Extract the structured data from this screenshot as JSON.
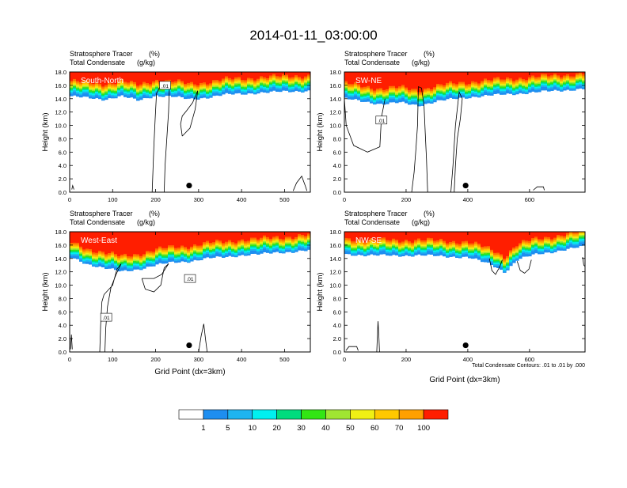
{
  "page_title": "2014-01-11_03:00:00",
  "colors": {
    "scale": [
      "#ffffff",
      "#1e8ef0",
      "#1eb4f0",
      "#00f0f0",
      "#00dc7e",
      "#32e614",
      "#a0e632",
      "#f0f014",
      "#ffc800",
      "#ffa000",
      "#ff6e00",
      "#ff1e00"
    ],
    "contour": "#000000",
    "label_box_bg": "#ffffff"
  },
  "chart_data": [
    {
      "type": "heatmap",
      "panel_label": "South-North",
      "title_left_line1": "Stratosphere Tracer",
      "title_right_line1": "(%)",
      "title_left_line2": "Total Condensate",
      "title_right_line2": "(g/kg)",
      "xlabel": "",
      "ylabel": "Height (km)",
      "xlim": [
        0,
        560
      ],
      "ylim": [
        0,
        18
      ],
      "x_ticks": [
        0,
        100,
        200,
        300,
        400,
        500
      ],
      "x_tick_labels": [
        "0",
        "100",
        "200",
        "300",
        "400",
        "500"
      ],
      "y_ticks": [
        0,
        2,
        4,
        6,
        8,
        10,
        12,
        14,
        16,
        18
      ],
      "y_tick_labels": [
        "0.0",
        "2.0",
        "4.0",
        "6.0",
        "8.0",
        "10.0",
        "12.0",
        "14.0",
        "16.0",
        "18.0"
      ],
      "marker": {
        "x": 278,
        "y": 1.0
      },
      "contour_labels": [
        {
          "text": ".01",
          "x": 222,
          "y": 16.0
        }
      ],
      "tracer_base_km": [
        {
          "x": 0,
          "y": 14.4
        },
        {
          "x": 40,
          "y": 14.1
        },
        {
          "x": 80,
          "y": 13.9
        },
        {
          "x": 120,
          "y": 14.4
        },
        {
          "x": 160,
          "y": 13.7
        },
        {
          "x": 200,
          "y": 14.5
        },
        {
          "x": 240,
          "y": 14.3
        },
        {
          "x": 280,
          "y": 13.9
        },
        {
          "x": 320,
          "y": 14.2
        },
        {
          "x": 360,
          "y": 14.6
        },
        {
          "x": 400,
          "y": 14.7
        },
        {
          "x": 440,
          "y": 14.9
        },
        {
          "x": 480,
          "y": 15.0
        },
        {
          "x": 520,
          "y": 15.1
        },
        {
          "x": 560,
          "y": 15.2
        }
      ]
    },
    {
      "type": "heatmap",
      "panel_label": "SW-NE",
      "title_left_line1": "Stratosphere Tracer",
      "title_right_line1": "(%)",
      "title_left_line2": "Total Condensate",
      "title_right_line2": "(g/kg)",
      "xlabel": "",
      "ylabel": "Height (km)",
      "xlim": [
        0,
        780
      ],
      "ylim": [
        0,
        18
      ],
      "x_ticks": [
        0,
        200,
        400,
        600
      ],
      "x_tick_labels": [
        "0",
        "200",
        "400",
        "600"
      ],
      "y_ticks": [
        0,
        2,
        4,
        6,
        8,
        10,
        12,
        14,
        16,
        18
      ],
      "y_tick_labels": [
        "0.0",
        "2.0",
        "4.0",
        "6.0",
        "8.0",
        "10.0",
        "12.0",
        "14.0",
        "16.0",
        "18.0"
      ],
      "marker": {
        "x": 393,
        "y": 1.0
      },
      "contour_labels": [
        {
          "text": ".01",
          "x": 120,
          "y": 10.8
        }
      ],
      "tracer_base_km": [
        {
          "x": 0,
          "y": 14.0
        },
        {
          "x": 60,
          "y": 13.6
        },
        {
          "x": 120,
          "y": 13.2
        },
        {
          "x": 180,
          "y": 13.4
        },
        {
          "x": 240,
          "y": 13.0
        },
        {
          "x": 300,
          "y": 13.6
        },
        {
          "x": 360,
          "y": 14.0
        },
        {
          "x": 420,
          "y": 14.3
        },
        {
          "x": 480,
          "y": 14.5
        },
        {
          "x": 540,
          "y": 14.7
        },
        {
          "x": 600,
          "y": 14.9
        },
        {
          "x": 660,
          "y": 15.1
        },
        {
          "x": 720,
          "y": 15.3
        },
        {
          "x": 780,
          "y": 15.5
        }
      ]
    },
    {
      "type": "heatmap",
      "panel_label": "West-East",
      "title_left_line1": "Stratosphere Tracer",
      "title_right_line1": "(%)",
      "title_left_line2": "Total Condensate",
      "title_right_line2": "(g/kg)",
      "xlabel": "Grid Point (dx=3km)",
      "ylabel": "Height (km)",
      "xlim": [
        0,
        560
      ],
      "ylim": [
        0,
        18
      ],
      "x_ticks": [
        0,
        100,
        200,
        300,
        400,
        500
      ],
      "x_tick_labels": [
        "0",
        "100",
        "200",
        "300",
        "400",
        "500"
      ],
      "y_ticks": [
        0,
        2,
        4,
        6,
        8,
        10,
        12,
        14,
        16,
        18
      ],
      "y_tick_labels": [
        "0.0",
        "2.0",
        "4.0",
        "6.0",
        "8.0",
        "10.0",
        "12.0",
        "14.0",
        "16.0",
        "18.0"
      ],
      "marker": {
        "x": 278,
        "y": 1.0
      },
      "contour_labels": [
        {
          "text": ".01",
          "x": 85,
          "y": 5.2
        },
        {
          "text": ".01",
          "x": 280,
          "y": 11.0
        }
      ],
      "tracer_base_km": [
        {
          "x": 0,
          "y": 14.2
        },
        {
          "x": 40,
          "y": 13.2
        },
        {
          "x": 80,
          "y": 12.6
        },
        {
          "x": 120,
          "y": 12.0
        },
        {
          "x": 160,
          "y": 12.4
        },
        {
          "x": 200,
          "y": 13.0
        },
        {
          "x": 240,
          "y": 13.4
        },
        {
          "x": 280,
          "y": 13.6
        },
        {
          "x": 320,
          "y": 14.0
        },
        {
          "x": 360,
          "y": 14.2
        },
        {
          "x": 400,
          "y": 14.5
        },
        {
          "x": 440,
          "y": 14.6
        },
        {
          "x": 480,
          "y": 14.9
        },
        {
          "x": 520,
          "y": 15.0
        },
        {
          "x": 560,
          "y": 15.2
        }
      ]
    },
    {
      "type": "heatmap",
      "panel_label": "NW-SE",
      "title_left_line1": "Stratosphere Tracer",
      "title_right_line1": "(%)",
      "title_left_line2": "Total Condensate",
      "title_right_line2": "(g/kg)",
      "xlabel": "Grid Point (dx=3km)",
      "ylabel": "Height (km)",
      "xlim": [
        0,
        780
      ],
      "ylim": [
        0,
        18
      ],
      "x_ticks": [
        0,
        200,
        400,
        600
      ],
      "x_tick_labels": [
        "0",
        "200",
        "400",
        "600"
      ],
      "y_ticks": [
        0,
        2,
        4,
        6,
        8,
        10,
        12,
        14,
        16,
        18
      ],
      "y_tick_labels": [
        "0.0",
        "2.0",
        "4.0",
        "6.0",
        "8.0",
        "10.0",
        "12.0",
        "14.0",
        "16.0",
        "18.0"
      ],
      "marker": {
        "x": 393,
        "y": 1.0
      },
      "contour_labels": [],
      "contour_info": "Total Condensate Contours: .01 to .01 by .000",
      "tracer_base_km": [
        {
          "x": 0,
          "y": 14.6
        },
        {
          "x": 80,
          "y": 14.5
        },
        {
          "x": 160,
          "y": 14.4
        },
        {
          "x": 240,
          "y": 14.5
        },
        {
          "x": 320,
          "y": 14.3
        },
        {
          "x": 400,
          "y": 14.2
        },
        {
          "x": 480,
          "y": 13.0
        },
        {
          "x": 520,
          "y": 12.0
        },
        {
          "x": 560,
          "y": 13.8
        },
        {
          "x": 620,
          "y": 14.6
        },
        {
          "x": 700,
          "y": 15.2
        },
        {
          "x": 780,
          "y": 15.8
        }
      ]
    }
  ],
  "colorbar": {
    "labels": [
      "1",
      "5",
      "10",
      "20",
      "30",
      "40",
      "50",
      "60",
      "70",
      "100"
    ]
  }
}
